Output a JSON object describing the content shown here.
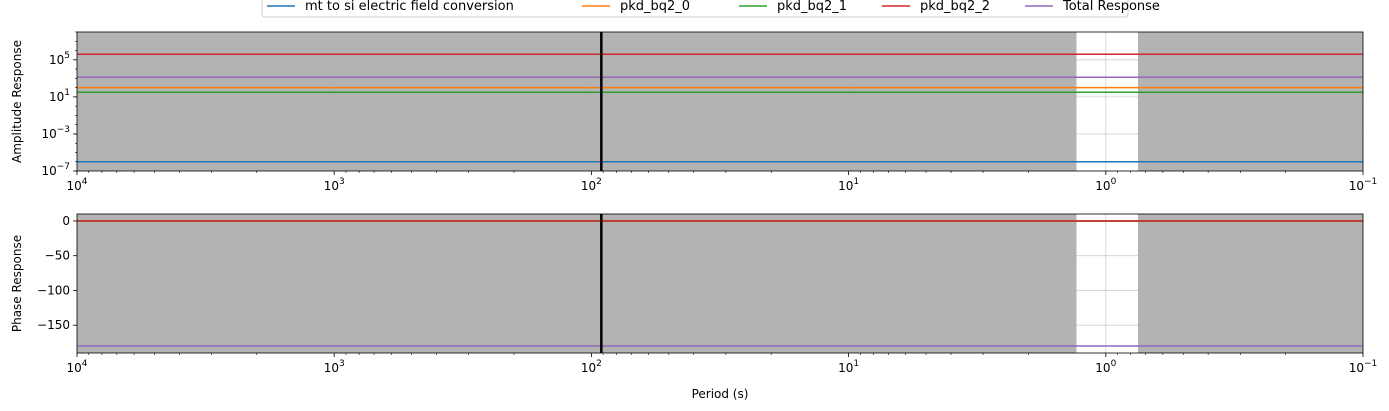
{
  "chart_data": [
    {
      "type": "line",
      "xscale": "log",
      "yscale": "log",
      "xlim": [
        10000,
        0.1
      ],
      "ylim": [
        1e-07,
        100000000.0
      ],
      "ylabel": "Amplitude Response",
      "xlabel": "",
      "x_tick_labels": [
        {
          "value": 10000,
          "base": "10",
          "exp": "4"
        },
        {
          "value": 1000,
          "base": "10",
          "exp": "3"
        },
        {
          "value": 100,
          "base": "10",
          "exp": "2"
        },
        {
          "value": 10,
          "base": "10",
          "exp": "1"
        },
        {
          "value": 1,
          "base": "10",
          "exp": "0"
        },
        {
          "value": 0.1,
          "base": "10",
          "exp": "−1"
        }
      ],
      "y_tick_labels": [
        {
          "value": 1e-07,
          "base": "10",
          "exp": "−7"
        },
        {
          "value": 0.001,
          "base": "10",
          "exp": "−3"
        },
        {
          "value": 10,
          "base": "10",
          "exp": "1"
        },
        {
          "value": 100000.0,
          "base": "10",
          "exp": "5"
        }
      ],
      "grid": true,
      "series": [
        {
          "name": "mt to si electric field conversion",
          "color": "#1f77b4",
          "x": [
            10000,
            0.1
          ],
          "y": [
            1e-06,
            1e-06
          ]
        },
        {
          "name": "pkd_bq2_0",
          "color": "#ff7f0e",
          "x": [
            10000,
            0.1
          ],
          "y": [
            100,
            100
          ]
        },
        {
          "name": "pkd_bq2_1",
          "color": "#2ca02c",
          "x": [
            10000,
            0.1
          ],
          "y": [
            32,
            32
          ]
        },
        {
          "name": "pkd_bq2_2",
          "color": "#d62728",
          "x": [
            10000,
            0.1
          ],
          "y": [
            400000.0,
            400000.0
          ]
        },
        {
          "name": "Total Response",
          "color": "#9467bd",
          "x": [
            10000,
            0.1
          ],
          "y": [
            1300,
            1300
          ]
        }
      ],
      "shaded_x_ranges": [
        [
          10000,
          1.3
        ],
        [
          0.75,
          0.1
        ]
      ],
      "vertical_lines": [
        91.5
      ]
    },
    {
      "type": "line",
      "xscale": "log",
      "yscale": "linear",
      "xlim": [
        10000,
        0.1
      ],
      "ylim": [
        -190,
        10
      ],
      "ylabel": "Phase Response",
      "xlabel": "Period (s)",
      "x_tick_labels": [
        {
          "value": 10000,
          "base": "10",
          "exp": "4"
        },
        {
          "value": 1000,
          "base": "10",
          "exp": "3"
        },
        {
          "value": 100,
          "base": "10",
          "exp": "2"
        },
        {
          "value": 10,
          "base": "10",
          "exp": "1"
        },
        {
          "value": 1,
          "base": "10",
          "exp": "0"
        },
        {
          "value": 0.1,
          "base": "10",
          "exp": "−1"
        }
      ],
      "y_ticks": [
        0,
        -50,
        -100,
        -150
      ],
      "y_tick_labels": [
        "0",
        "−50",
        "−100",
        "−150"
      ],
      "grid": true,
      "series": [
        {
          "name": "mt to si electric field conversion",
          "color": "#1f77b4",
          "x": [
            10000,
            0.1
          ],
          "y": [
            0,
            0
          ]
        },
        {
          "name": "pkd_bq2_0",
          "color": "#ff7f0e",
          "x": [
            10000,
            0.1
          ],
          "y": [
            0,
            0
          ]
        },
        {
          "name": "pkd_bq2_1",
          "color": "#2ca02c",
          "x": [
            10000,
            0.1
          ],
          "y": [
            0,
            0
          ]
        },
        {
          "name": "pkd_bq2_2",
          "color": "#d62728",
          "x": [
            10000,
            0.1
          ],
          "y": [
            0,
            0
          ]
        },
        {
          "name": "Total Response",
          "color": "#9467bd",
          "x": [
            10000,
            0.1
          ],
          "y": [
            -180,
            -180
          ]
        }
      ],
      "shaded_x_ranges": [
        [
          10000,
          1.3
        ],
        [
          0.75,
          0.1
        ]
      ],
      "vertical_lines": [
        91.5
      ]
    }
  ],
  "legend": {
    "placement": "top-center",
    "entries": [
      {
        "label": "mt to si electric field conversion",
        "color": "#1f77b4"
      },
      {
        "label": "pkd_bq2_0",
        "color": "#ff7f0e"
      },
      {
        "label": "pkd_bq2_1",
        "color": "#2ca02c"
      },
      {
        "label": "pkd_bq2_2",
        "color": "#d62728"
      },
      {
        "label": "Total Response",
        "color": "#9467bd"
      }
    ]
  },
  "colors": {
    "shade": "#b3b3b3",
    "grid": "#b0b0b0",
    "vline": "#000000"
  }
}
